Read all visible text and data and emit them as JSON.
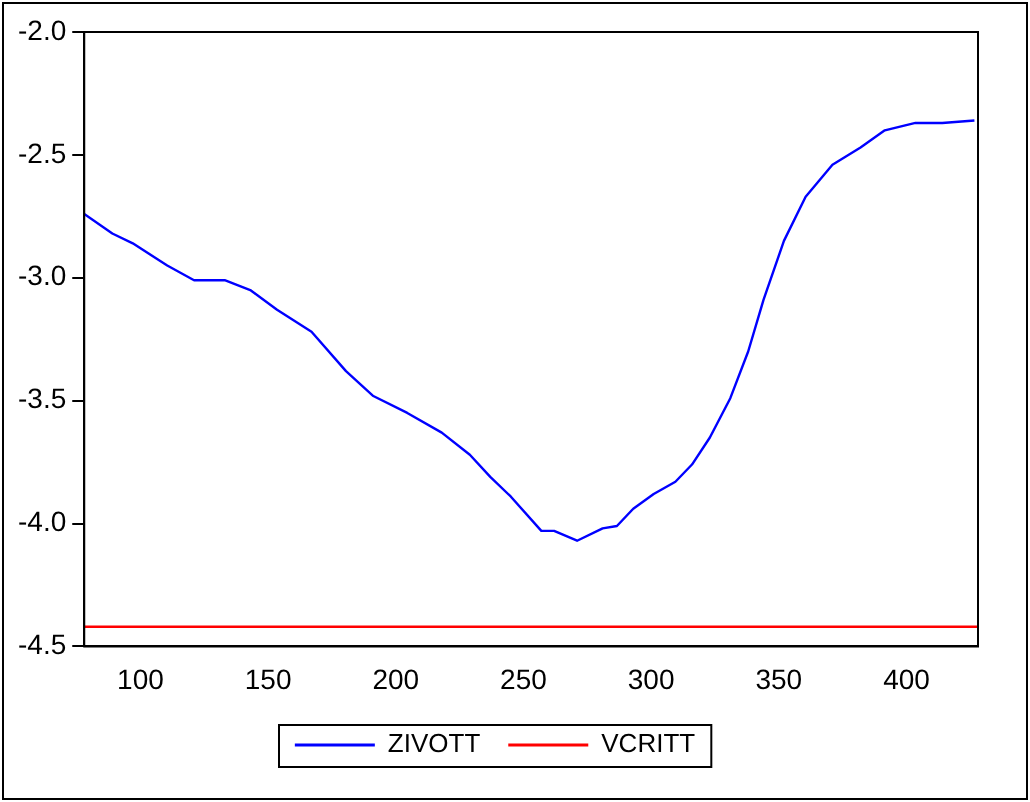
{
  "chart_data": {
    "type": "line",
    "xlim": [
      78,
      428
    ],
    "xticks": [
      100,
      150,
      200,
      250,
      300,
      350,
      400
    ],
    "ylim": [
      -4.5,
      -2.0
    ],
    "yticks": [
      {
        "value": -4.5,
        "label": "-4.5"
      },
      {
        "value": -4,
        "label": "-4.0"
      },
      {
        "value": -3.5,
        "label": "-3.5"
      },
      {
        "value": -3,
        "label": "-3.0"
      },
      {
        "value": -2.5,
        "label": "-2.5"
      },
      {
        "value": -2,
        "label": "-2.0"
      }
    ],
    "grid": false,
    "legend": "bottom",
    "marker": "none",
    "line_style": "solid",
    "series": [
      {
        "name": "ZIVOTT",
        "color": "#0000ff",
        "x": [
          78,
          89,
          97,
          110.5,
          121,
          133,
          143,
          153.5,
          167,
          180.5,
          191,
          204.5,
          218,
          229,
          237,
          245,
          257,
          262,
          271,
          281,
          286.6,
          293,
          301,
          309.5,
          316,
          323,
          331,
          338,
          344,
          352,
          360.5,
          371,
          382,
          391.5,
          403.5,
          414,
          426.6
        ],
        "values": [
          -2.74,
          -2.82,
          -2.86,
          -2.95,
          -3.01,
          -3.01,
          -3.05,
          -3.13,
          -3.22,
          -3.38,
          -3.48,
          -3.55,
          -3.63,
          -3.72,
          -3.81,
          -3.89,
          -4.03,
          -4.03,
          -4.07,
          -4.02,
          -4.01,
          -3.94,
          -3.88,
          -3.83,
          -3.76,
          -3.65,
          -3.49,
          -3.3,
          -3.09,
          -2.85,
          -2.67,
          -2.54,
          -2.47,
          -2.4,
          -2.37,
          -2.37,
          -2.36
        ]
      },
      {
        "name": "VCRITT",
        "color": "#ff0000",
        "x": [
          78,
          428
        ],
        "values": [
          -4.42,
          -4.42
        ]
      }
    ]
  }
}
